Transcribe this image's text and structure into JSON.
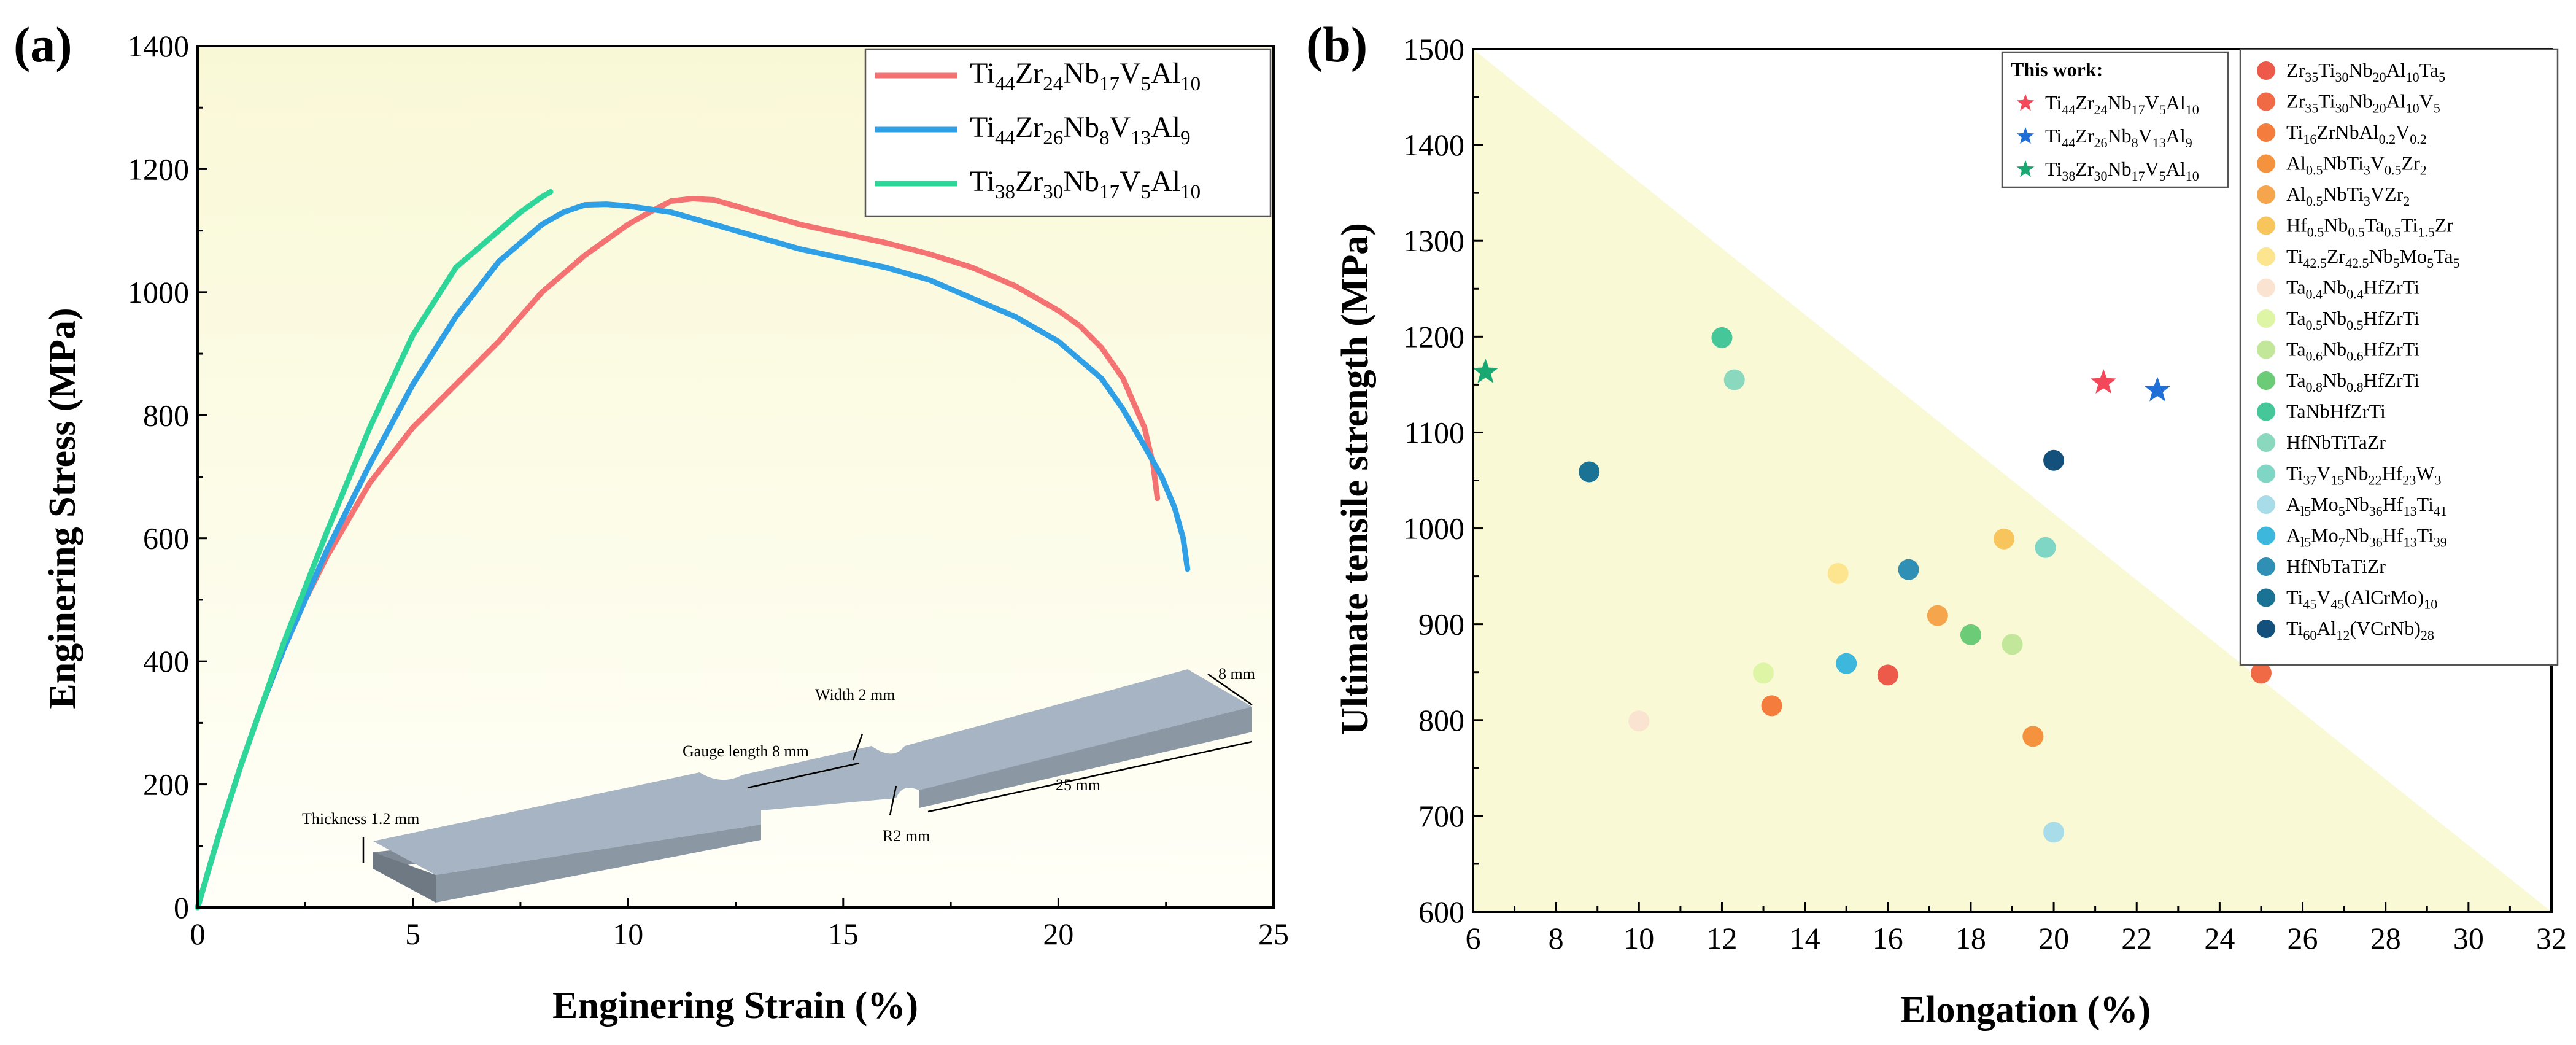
{
  "colors": {
    "yellow_region": "#f9f9d6",
    "series_a": [
      "#f47272",
      "#2f9fe6",
      "#2fd69a"
    ],
    "specimen_top": "#a5b2c1",
    "specimen_side": "#7f8a96"
  },
  "chart_data": [
    {
      "id": "panel-a",
      "type": "line",
      "panel_label": "(a)",
      "xlabel": "Enginering Strain (%)",
      "ylabel": "Enginering Stress (MPa)",
      "xlim": [
        0,
        25
      ],
      "ylim": [
        0,
        1400
      ],
      "xticks": [
        "0",
        "5",
        "10",
        "15",
        "20",
        "25"
      ],
      "yticks": [
        "0",
        "200",
        "400",
        "600",
        "800",
        "1000",
        "1200",
        "1400"
      ],
      "series": [
        {
          "name": [
            "Ti",
            "44",
            "Zr",
            "24",
            "Nb",
            "17",
            "V",
            "5",
            "Al",
            "10"
          ],
          "color": "#f47272",
          "x": [
            0,
            0.5,
            1,
            1.5,
            2,
            2.5,
            3,
            3.5,
            4,
            5,
            6,
            7,
            8,
            9,
            10,
            10.5,
            11,
            11.5,
            12,
            13,
            14,
            15,
            16,
            17,
            18,
            19,
            20,
            20.5,
            21,
            21.5,
            22,
            22.2,
            22.3
          ],
          "y": [
            0,
            120,
            230,
            330,
            420,
            500,
            570,
            630,
            690,
            780,
            850,
            920,
            1000,
            1060,
            1110,
            1130,
            1148,
            1152,
            1150,
            1130,
            1110,
            1095,
            1080,
            1062,
            1040,
            1010,
            970,
            945,
            910,
            860,
            780,
            720,
            665
          ]
        },
        {
          "name": [
            "Ti",
            "44",
            "Zr",
            "26",
            "Nb",
            "8",
            "V",
            "13",
            "Al",
            "9"
          ],
          "color": "#2f9fe6",
          "x": [
            0,
            0.5,
            1,
            1.5,
            2,
            3,
            4,
            5,
            6,
            7,
            8,
            8.5,
            9,
            9.5,
            10,
            11,
            12,
            13,
            14,
            15,
            16,
            17,
            18,
            19,
            20,
            21,
            21.5,
            22,
            22.4,
            22.7,
            22.9,
            23
          ],
          "y": [
            0,
            120,
            230,
            330,
            420,
            580,
            720,
            850,
            960,
            1050,
            1110,
            1130,
            1142,
            1143,
            1140,
            1130,
            1110,
            1090,
            1070,
            1055,
            1040,
            1020,
            990,
            960,
            920,
            860,
            810,
            750,
            700,
            650,
            600,
            550
          ]
        },
        {
          "name": [
            "Ti",
            "38",
            "Zr",
            "30",
            "Nb",
            "17",
            "V",
            "5",
            "Al",
            "10"
          ],
          "color": "#2fd69a",
          "x": [
            0,
            0.5,
            1,
            1.5,
            2,
            3,
            4,
            5,
            6,
            7,
            7.5,
            8,
            8.2
          ],
          "y": [
            0,
            120,
            230,
            330,
            430,
            610,
            780,
            930,
            1040,
            1100,
            1130,
            1155,
            1163
          ]
        }
      ],
      "inset_annotations": [
        "Width 2 mm",
        "8 mm",
        "Gauge length 8 mm",
        "25 mm",
        "R2 mm",
        "Thickness 1.2 mm"
      ]
    },
    {
      "id": "panel-b",
      "type": "scatter",
      "panel_label": "(b)",
      "xlabel": "Elongation (%)",
      "ylabel": "Ultimate tensile strength (MPa)",
      "xlim": [
        6,
        32
      ],
      "ylim": [
        600,
        1500
      ],
      "xticks": [
        "6",
        "8",
        "10",
        "12",
        "14",
        "16",
        "18",
        "20",
        "22",
        "24",
        "26",
        "28",
        "30",
        "32"
      ],
      "yticks": [
        "600",
        "700",
        "800",
        "900",
        "1000",
        "1100",
        "1200",
        "1300",
        "1400",
        "1500"
      ],
      "this_work_title": "This work:",
      "this_work": [
        {
          "name": [
            "Ti",
            "44",
            "Zr",
            "24",
            "Nb",
            "17",
            "V",
            "5",
            "Al",
            "10"
          ],
          "color": "#f2485a",
          "x": 21.2,
          "y": 1152
        },
        {
          "name": [
            "Ti",
            "44",
            "Zr",
            "26",
            "Nb",
            "8",
            "V",
            "13",
            "Al",
            "9"
          ],
          "color": "#1f6fd6",
          "x": 22.5,
          "y": 1144
        },
        {
          "name": [
            "Ti",
            "38",
            "Zr",
            "30",
            "Nb",
            "17",
            "V",
            "5",
            "Al",
            "10"
          ],
          "color": "#1aa872",
          "x": 6.3,
          "y": 1163
        }
      ],
      "literature": [
        {
          "name": [
            "Zr",
            "35",
            "Ti",
            "30",
            "Nb",
            "20",
            "Al",
            "10",
            "Ta",
            "5"
          ],
          "color": "#ee5a4a",
          "points": [
            {
              "x": 16.0,
              "y": 847
            }
          ]
        },
        {
          "name": [
            "Zr",
            "35",
            "Ti",
            "30",
            "Nb",
            "20",
            "Al",
            "10",
            "V",
            "5"
          ],
          "color": "#f06a45",
          "points": [
            {
              "x": 25.0,
              "y": 849
            }
          ]
        },
        {
          "name": [
            "Ti",
            "16",
            "ZrNbAl",
            "0.2",
            "V",
            "0.2"
          ],
          "color": "#f47c3c",
          "points": [
            {
              "x": 13.2,
              "y": 815
            }
          ]
        },
        {
          "name": [
            "Al",
            "0.5",
            "NbTi",
            "3",
            "V",
            "0.5",
            "Zr",
            "2"
          ],
          "color": "#f4923e",
          "points": [
            {
              "x": 19.5,
              "y": 783
            }
          ]
        },
        {
          "name": [
            "Al",
            "0.5",
            "NbTi",
            "3",
            "VZr",
            "2"
          ],
          "color": "#f5a64c",
          "points": [
            {
              "x": 17.2,
              "y": 909
            }
          ]
        },
        {
          "name": [
            "Hf",
            "0.5",
            "Nb",
            "0.5",
            "Ta",
            "0.5",
            "Ti",
            "1.5",
            "Zr"
          ],
          "color": "#f8c45c",
          "points": [
            {
              "x": 18.8,
              "y": 989
            }
          ]
        },
        {
          "name": [
            "Ti",
            "42.5",
            "Zr",
            "42.5",
            "Nb",
            "5",
            "Mo",
            "5",
            "Ta",
            "5"
          ],
          "color": "#fce58e",
          "points": [
            {
              "x": 14.8,
              "y": 953
            }
          ]
        },
        {
          "name": [
            "Ta",
            "0.4",
            "Nb",
            "0.4",
            "HfZrTi"
          ],
          "color": "#fbe3d2",
          "points": [
            {
              "x": 10.0,
              "y": 799
            }
          ]
        },
        {
          "name": [
            "Ta",
            "0.5",
            "Nb",
            "0.5",
            "HfZrTi"
          ],
          "color": "#def5a6",
          "points": [
            {
              "x": 13.0,
              "y": 849
            }
          ]
        },
        {
          "name": [
            "Ta",
            "0.6",
            "Nb",
            "0.6",
            "HfZrTi"
          ],
          "color": "#c3e79a",
          "points": [
            {
              "x": 19.0,
              "y": 879
            }
          ]
        },
        {
          "name": [
            "Ta",
            "0.8",
            "Nb",
            "0.8",
            "HfZrTi"
          ],
          "color": "#6ccb76",
          "points": [
            {
              "x": 18.0,
              "y": 889
            }
          ]
        },
        {
          "name": [
            "TaNbHfZrTi"
          ],
          "color": "#45c79a",
          "points": [
            {
              "x": 12.0,
              "y": 1199
            }
          ]
        },
        {
          "name": [
            "HfNbTiTaZr"
          ],
          "color": "#8ad8bd",
          "points": [
            {
              "x": 12.3,
              "y": 1155
            }
          ]
        },
        {
          "name": [
            "Ti",
            "37",
            "V",
            "15",
            "Nb",
            "22",
            "Hf",
            "23",
            "W",
            "3"
          ],
          "color": "#7fd6c4",
          "points": [
            {
              "x": 19.8,
              "y": 980
            }
          ]
        },
        {
          "name": [
            "A",
            "l5",
            "Mo",
            "5",
            "Nb",
            "36",
            "Hf",
            "13",
            "Ti",
            "41"
          ],
          "color": "#a8dce8",
          "points": [
            {
              "x": 20.0,
              "y": 683
            }
          ]
        },
        {
          "name": [
            "A",
            "l5",
            "Mo",
            "7",
            "Nb",
            "36",
            "Hf",
            "13",
            "Ti",
            "39"
          ],
          "color": "#3db8dc",
          "points": [
            {
              "x": 15.0,
              "y": 859
            }
          ]
        },
        {
          "name": [
            "HfNbTaTiZr"
          ],
          "color": "#2f8fb4",
          "points": [
            {
              "x": 16.5,
              "y": 957
            }
          ]
        },
        {
          "name": [
            "Ti",
            "45",
            "V",
            "45",
            "(AlCrMo)",
            "10"
          ],
          "color": "#1a7394",
          "points": [
            {
              "x": 8.8,
              "y": 1059
            }
          ]
        },
        {
          "name": [
            "Ti",
            "60",
            "Al",
            "12",
            "(VCrNb)",
            "28"
          ],
          "color": "#14507c",
          "points": [
            {
              "x": 20.0,
              "y": 1071
            }
          ]
        }
      ]
    }
  ]
}
